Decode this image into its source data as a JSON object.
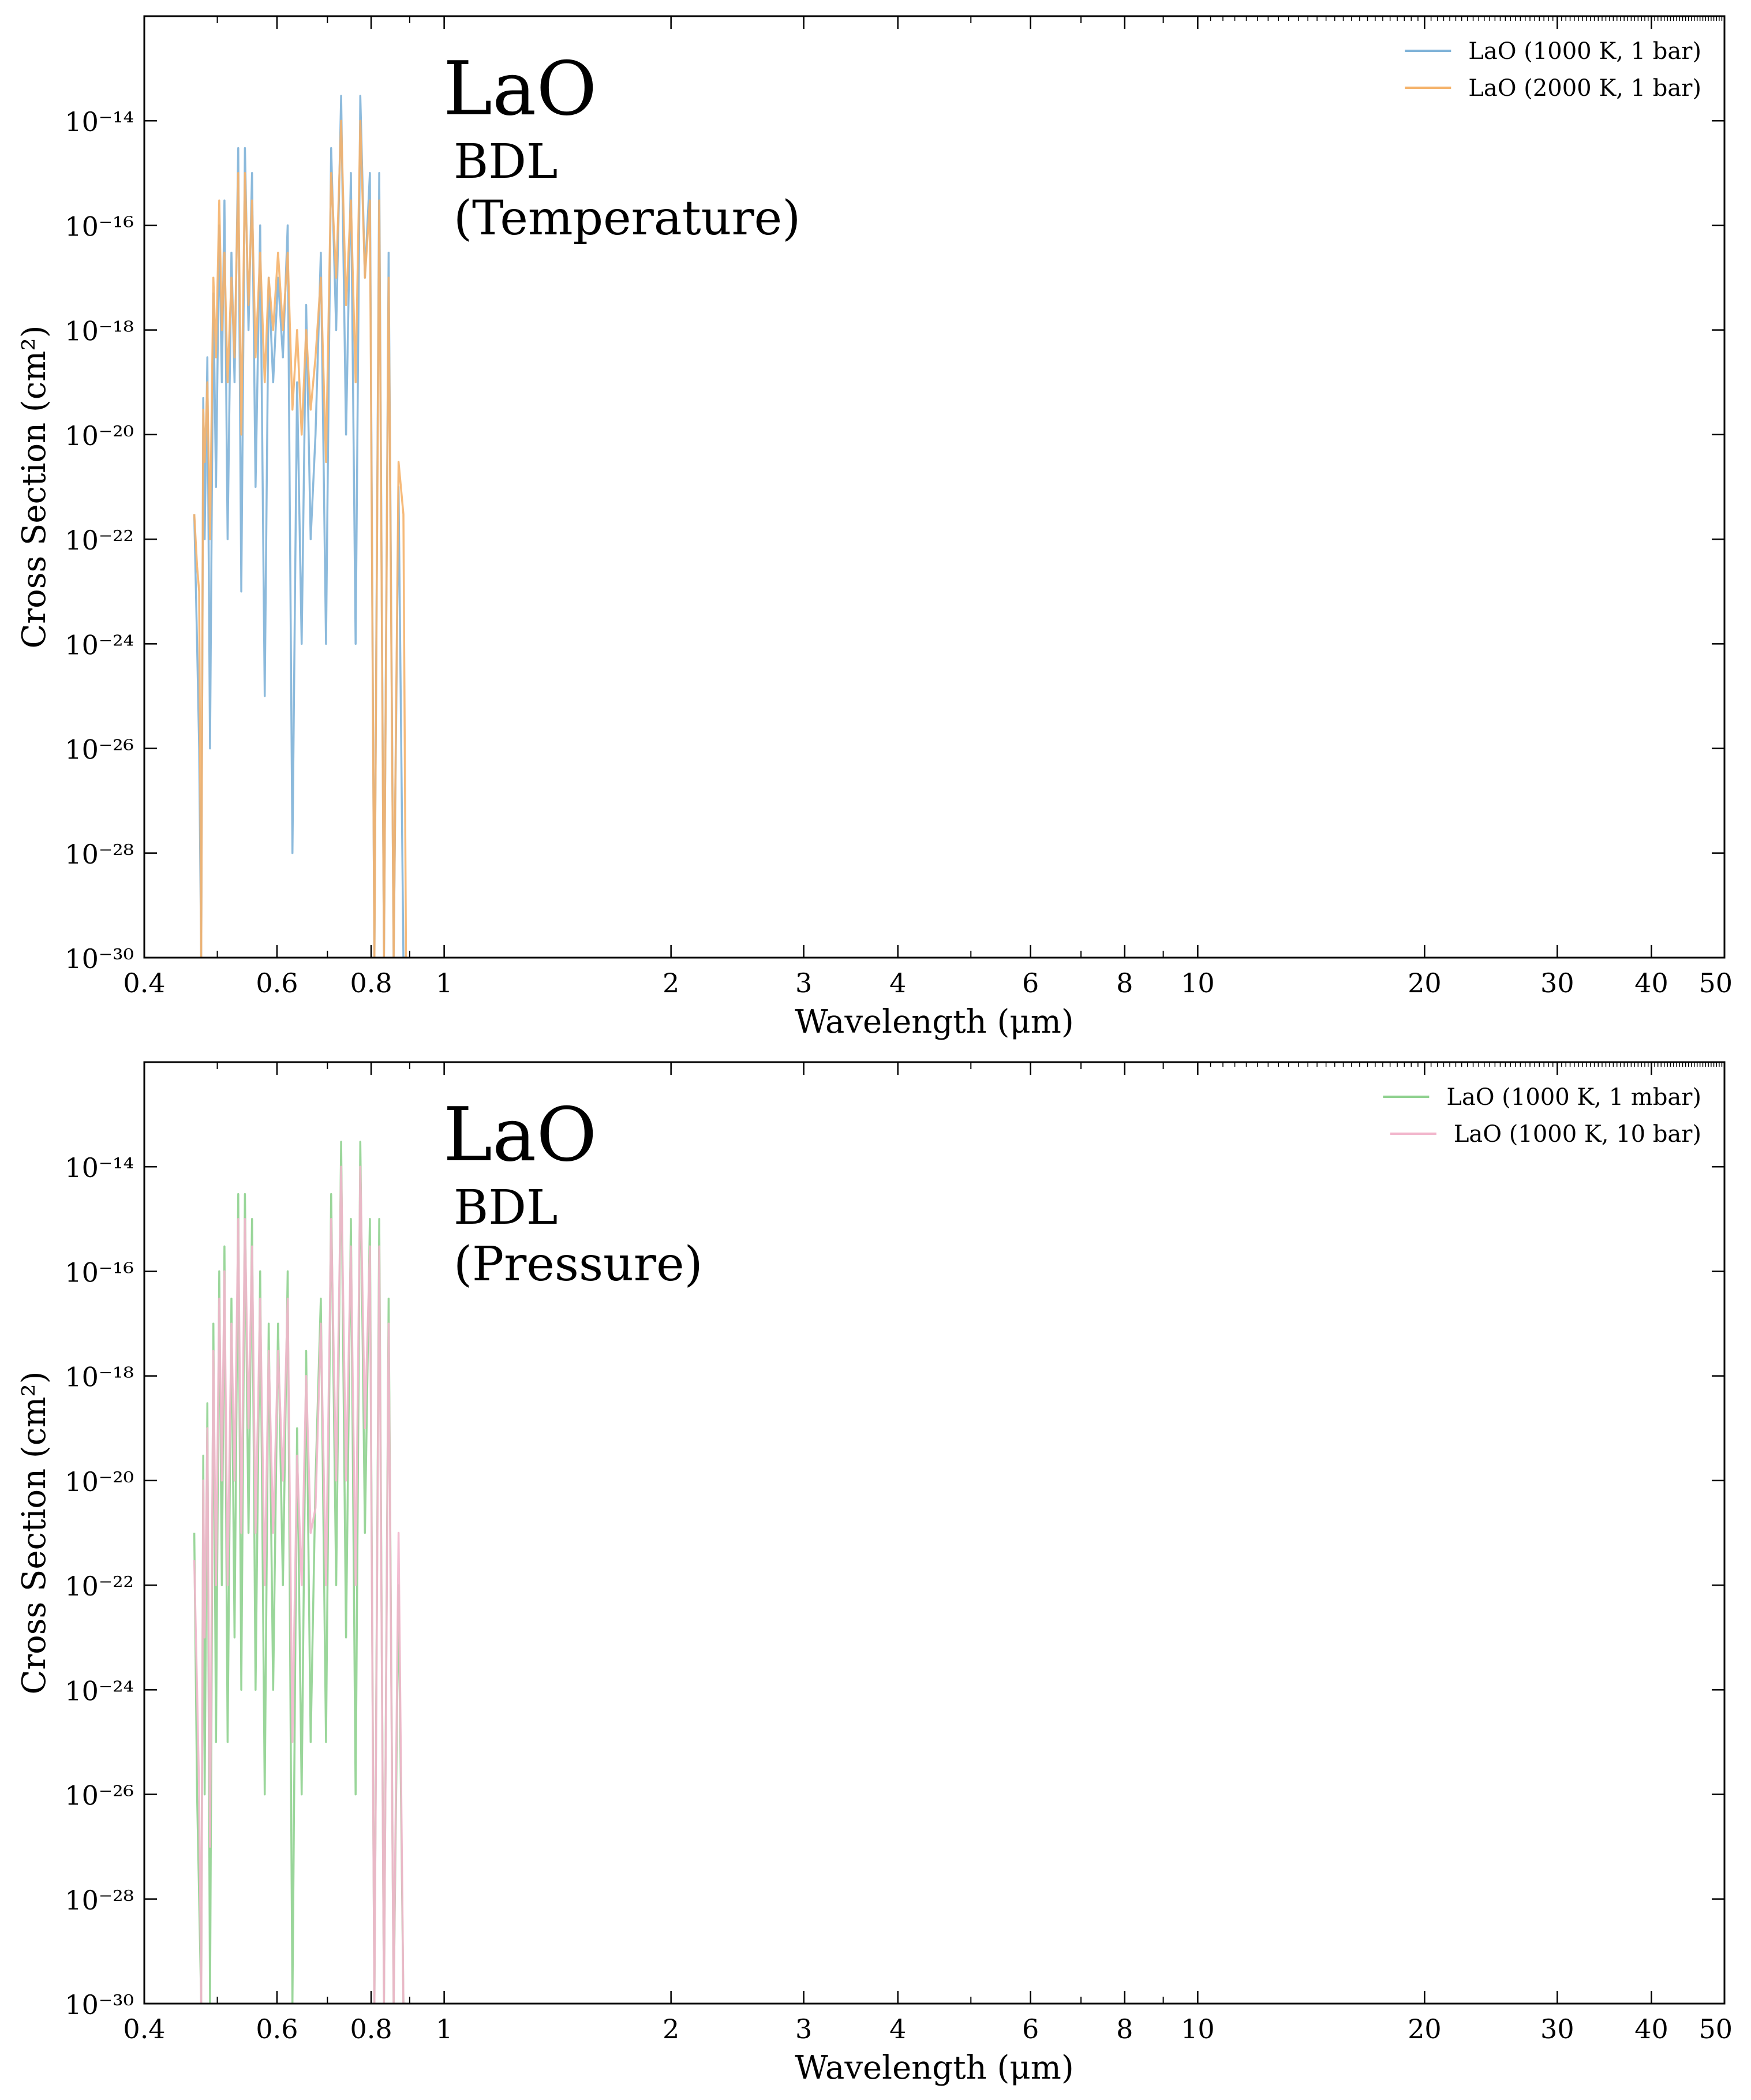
{
  "chart_data": [
    {
      "type": "line",
      "title": "LaO",
      "subtitle_lines": [
        "BDL",
        "(Temperature)"
      ],
      "xlabel": "Wavelength (μm)",
      "ylabel": "Cross Section (cm²)",
      "x_scale": "log",
      "y_scale": "log",
      "xlim": [
        0.4,
        50
      ],
      "ylim": [
        1e-30,
        1e-12
      ],
      "x_ticks": [
        0.4,
        0.6,
        0.8,
        1,
        2,
        3,
        4,
        6,
        8,
        10,
        20,
        30,
        40,
        50
      ],
      "x_tick_labels": [
        "0.4",
        "0.6",
        "0.8",
        "1",
        "2",
        "3",
        "4",
        "6",
        "8",
        "10",
        "20",
        "30",
        "40",
        "50"
      ],
      "y_ticks": [
        1e-14,
        1e-16,
        1e-18,
        1e-20,
        1e-22,
        1e-24,
        1e-26,
        1e-28,
        1e-30
      ],
      "y_tick_labels": [
        "10⁻¹⁴",
        "10⁻¹⁶",
        "10⁻¹⁸",
        "10⁻²⁰",
        "10⁻²²",
        "10⁻²⁴",
        "10⁻²⁶",
        "10⁻²⁸",
        "10⁻³⁰"
      ],
      "grid": false,
      "legend_position": "top-right",
      "series": [
        {
          "name": "LaO (1000 K, 1 bar)",
          "color": "#7fb3d8",
          "x": [
            0.466,
            0.47,
            0.473,
            0.476,
            0.479,
            0.481,
            0.485,
            0.489,
            0.494,
            0.498,
            0.503,
            0.507,
            0.511,
            0.516,
            0.522,
            0.527,
            0.533,
            0.538,
            0.544,
            0.55,
            0.556,
            0.562,
            0.57,
            0.578,
            0.585,
            0.593,
            0.602,
            0.611,
            0.62,
            0.629,
            0.638,
            0.647,
            0.656,
            0.665,
            0.675,
            0.686,
            0.697,
            0.708,
            0.719,
            0.73,
            0.741,
            0.752,
            0.763,
            0.774,
            0.785,
            0.797,
            0.808,
            0.82,
            0.832,
            0.844,
            0.857,
            0.87,
            0.883,
            0.89
          ],
          "y": [
            3e-22,
            1e-24,
            1e-26,
            1e-30,
            5e-20,
            1e-22,
            3e-19,
            1e-26,
            5e-18,
            1e-21,
            1e-16,
            1e-19,
            3e-16,
            1e-22,
            3e-17,
            1e-19,
            3e-15,
            1e-23,
            3e-15,
            1e-18,
            1e-15,
            1e-21,
            1e-16,
            1e-25,
            1e-17,
            1e-19,
            1e-17,
            3e-19,
            1e-16,
            1e-28,
            1e-19,
            1e-24,
            3e-18,
            1e-22,
            1e-20,
            3e-17,
            1e-24,
            3e-15,
            1e-18,
            3e-14,
            1e-20,
            1e-15,
            1e-24,
            3e-14,
            1e-17,
            1e-15,
            1e-30,
            1e-15,
            1e-30,
            3e-17,
            1e-30,
            1e-21,
            1e-30,
            1e-30
          ]
        },
        {
          "name": "LaO (2000 K, 1 bar)",
          "color": "#f5b36b",
          "x": [
            0.466,
            0.47,
            0.473,
            0.476,
            0.479,
            0.481,
            0.485,
            0.489,
            0.494,
            0.498,
            0.503,
            0.507,
            0.511,
            0.516,
            0.522,
            0.527,
            0.533,
            0.538,
            0.544,
            0.55,
            0.556,
            0.562,
            0.57,
            0.578,
            0.585,
            0.593,
            0.602,
            0.611,
            0.62,
            0.629,
            0.638,
            0.647,
            0.656,
            0.665,
            0.675,
            0.686,
            0.697,
            0.708,
            0.719,
            0.73,
            0.741,
            0.752,
            0.763,
            0.774,
            0.785,
            0.797,
            0.808,
            0.82,
            0.832,
            0.844,
            0.857,
            0.87,
            0.883,
            0.89
          ],
          "y": [
            3e-22,
            3e-23,
            1e-23,
            1e-30,
            3e-20,
            3e-21,
            1e-19,
            1e-22,
            1e-17,
            3e-19,
            3e-16,
            1e-18,
            3e-17,
            1e-19,
            1e-17,
            3e-19,
            1e-15,
            1e-20,
            1e-15,
            3e-18,
            3e-16,
            3e-19,
            3e-17,
            1e-19,
            1e-17,
            1e-18,
            3e-17,
            1e-18,
            3e-17,
            3e-20,
            1e-18,
            1e-20,
            1e-18,
            3e-20,
            3e-19,
            1e-17,
            3e-21,
            1e-15,
            1e-17,
            1e-14,
            3e-18,
            3e-16,
            1e-19,
            1e-14,
            1e-17,
            3e-16,
            1e-30,
            3e-16,
            1e-30,
            1e-17,
            1e-30,
            3e-21,
            3e-22,
            1e-30
          ]
        }
      ]
    },
    {
      "type": "line",
      "title": "LaO",
      "subtitle_lines": [
        "BDL",
        "(Pressure)"
      ],
      "xlabel": "Wavelength (μm)",
      "ylabel": "Cross Section (cm²)",
      "x_scale": "log",
      "y_scale": "log",
      "xlim": [
        0.4,
        50
      ],
      "ylim": [
        1e-30,
        1e-12
      ],
      "x_ticks": [
        0.4,
        0.6,
        0.8,
        1,
        2,
        3,
        4,
        6,
        8,
        10,
        20,
        30,
        40,
        50
      ],
      "x_tick_labels": [
        "0.4",
        "0.6",
        "0.8",
        "1",
        "2",
        "3",
        "4",
        "6",
        "8",
        "10",
        "20",
        "30",
        "40",
        "50"
      ],
      "y_ticks": [
        1e-14,
        1e-16,
        1e-18,
        1e-20,
        1e-22,
        1e-24,
        1e-26,
        1e-28,
        1e-30
      ],
      "y_tick_labels": [
        "10⁻¹⁴",
        "10⁻¹⁶",
        "10⁻¹⁸",
        "10⁻²⁰",
        "10⁻²²",
        "10⁻²⁴",
        "10⁻²⁶",
        "10⁻²⁸",
        "10⁻³⁰"
      ],
      "grid": false,
      "legend_position": "top-right",
      "series": [
        {
          "name": "LaO (1000 K, 1 mbar)",
          "color": "#8fd18f",
          "x": [
            0.466,
            0.47,
            0.473,
            0.476,
            0.479,
            0.481,
            0.485,
            0.489,
            0.494,
            0.498,
            0.503,
            0.507,
            0.511,
            0.516,
            0.522,
            0.527,
            0.533,
            0.538,
            0.544,
            0.55,
            0.556,
            0.562,
            0.57,
            0.578,
            0.585,
            0.593,
            0.602,
            0.611,
            0.62,
            0.629,
            0.638,
            0.647,
            0.656,
            0.665,
            0.675,
            0.686,
            0.697,
            0.708,
            0.719,
            0.73,
            0.741,
            0.752,
            0.763,
            0.774,
            0.785,
            0.797,
            0.808,
            0.82,
            0.832,
            0.844,
            0.857,
            0.87,
            0.883,
            0.89
          ],
          "y": [
            1e-21,
            1e-26,
            1e-28,
            1e-30,
            3e-20,
            1e-26,
            3e-19,
            1e-30,
            1e-17,
            1e-25,
            1e-16,
            1e-22,
            3e-16,
            1e-25,
            3e-17,
            1e-23,
            3e-15,
            1e-24,
            3e-15,
            1e-21,
            1e-15,
            1e-24,
            1e-16,
            1e-26,
            1e-17,
            1e-24,
            1e-17,
            1e-22,
            1e-16,
            1e-30,
            1e-19,
            1e-26,
            3e-18,
            1e-25,
            1e-20,
            3e-17,
            1e-25,
            3e-15,
            1e-22,
            3e-14,
            1e-23,
            1e-15,
            1e-26,
            3e-14,
            1e-21,
            1e-15,
            1e-30,
            1e-15,
            1e-30,
            3e-17,
            1e-30,
            1e-22,
            1e-30,
            1e-30
          ]
        },
        {
          "name": "LaO (1000 K, 10 bar)",
          "color": "#f2b6cc",
          "x": [
            0.466,
            0.47,
            0.473,
            0.476,
            0.479,
            0.481,
            0.485,
            0.489,
            0.494,
            0.498,
            0.503,
            0.507,
            0.511,
            0.516,
            0.522,
            0.527,
            0.533,
            0.538,
            0.544,
            0.55,
            0.556,
            0.562,
            0.57,
            0.578,
            0.585,
            0.593,
            0.602,
            0.611,
            0.62,
            0.629,
            0.638,
            0.647,
            0.656,
            0.665,
            0.675,
            0.686,
            0.697,
            0.708,
            0.719,
            0.73,
            0.741,
            0.752,
            0.763,
            0.774,
            0.785,
            0.797,
            0.808,
            0.82,
            0.832,
            0.844,
            0.857,
            0.87,
            0.883,
            0.89
          ],
          "y": [
            3e-22,
            1e-24,
            1e-26,
            1e-30,
            1e-20,
            1e-23,
            1e-19,
            1e-27,
            3e-18,
            1e-22,
            3e-17,
            1e-20,
            1e-16,
            1e-22,
            1e-17,
            1e-20,
            1e-15,
            1e-21,
            1e-15,
            1e-19,
            3e-16,
            1e-21,
            3e-17,
            1e-22,
            3e-18,
            1e-21,
            3e-18,
            1e-20,
            3e-17,
            1e-25,
            3e-20,
            1e-22,
            1e-18,
            1e-21,
            3e-21,
            1e-17,
            1e-22,
            1e-15,
            1e-20,
            1e-14,
            1e-20,
            3e-16,
            1e-22,
            1e-14,
            1e-19,
            3e-16,
            1e-30,
            3e-16,
            1e-30,
            1e-17,
            1e-30,
            1e-21,
            1e-30,
            1e-30
          ]
        }
      ]
    }
  ]
}
